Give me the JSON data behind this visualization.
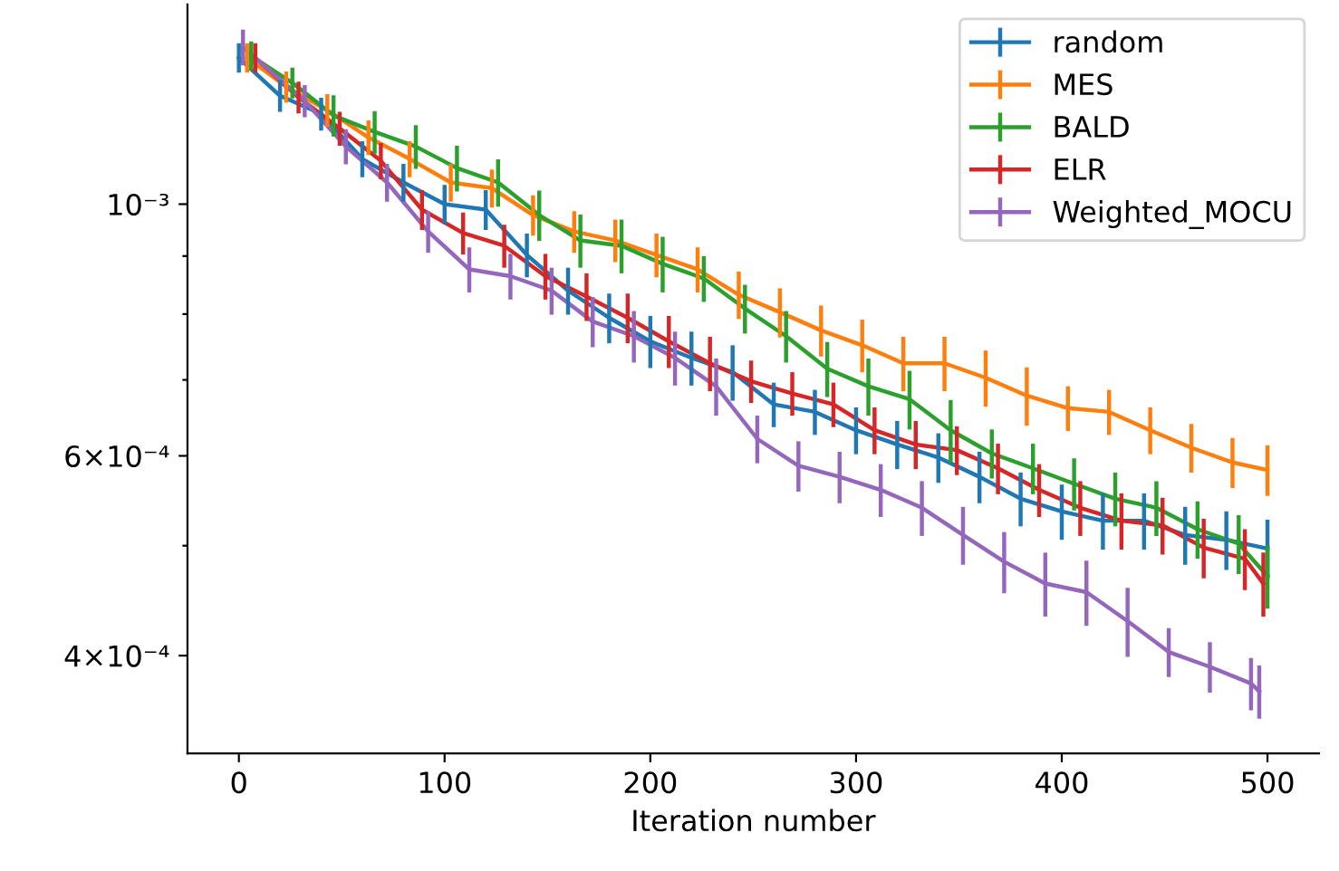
{
  "chart_data": {
    "type": "line",
    "xlabel": "Iteration number",
    "x": [
      0,
      20,
      40,
      60,
      80,
      100,
      120,
      140,
      160,
      180,
      200,
      220,
      240,
      260,
      280,
      300,
      320,
      340,
      360,
      380,
      400,
      420,
      440,
      460,
      480,
      500
    ],
    "series": [
      {
        "name": "random",
        "color": "#1f77b4",
        "values": [
          0.001346,
          0.001246,
          0.001201,
          0.001096,
          0.001045,
          0.001,
          0.000989,
          0.000902,
          0.000839,
          0.000794,
          0.000757,
          0.000732,
          0.000711,
          0.000666,
          0.000656,
          0.000632,
          0.000614,
          0.000598,
          0.000575,
          0.00055,
          0.000536,
          0.000526,
          0.000526,
          0.000511,
          0.000506,
          0.000497
        ],
        "errors": [
          4e-05,
          4e-05,
          4e-05,
          4e-05,
          4e-05,
          4e-05,
          4e-05,
          4e-05,
          4e-05,
          4e-05,
          4e-05,
          4e-05,
          4e-05,
          3e-05,
          3e-05,
          3e-05,
          3e-05,
          3e-05,
          3e-05,
          3e-05,
          3e-05,
          3e-05,
          3e-05,
          3e-05,
          3e-05,
          3e-05
        ]
      },
      {
        "name": "MES",
        "color": "#ff7f0e",
        "x": [
          4,
          23,
          43,
          63,
          83,
          103,
          123,
          143,
          163,
          183,
          203,
          223,
          243,
          263,
          283,
          303,
          323,
          343,
          363,
          383,
          403,
          423,
          443,
          463,
          483,
          500
        ],
        "values": [
          0.001346,
          0.001269,
          0.00121,
          0.001145,
          0.001096,
          0.001045,
          0.001033,
          0.000978,
          0.000946,
          0.000929,
          0.000902,
          0.000876,
          0.000832,
          0.000803,
          0.000774,
          0.000751,
          0.000724,
          0.000724,
          0.000703,
          0.000678,
          0.000661,
          0.000656,
          0.000632,
          0.00061,
          0.000592,
          0.000583
        ],
        "errors": [
          4e-05,
          4e-05,
          4e-05,
          4e-05,
          4e-05,
          4e-05,
          4e-05,
          4e-05,
          4e-05,
          4e-05,
          4e-05,
          4e-05,
          4e-05,
          4e-05,
          4e-05,
          4e-05,
          4e-05,
          4e-05,
          4e-05,
          4e-05,
          3e-05,
          3e-05,
          3e-05,
          3e-05,
          3e-05,
          3e-05
        ]
      },
      {
        "name": "BALD",
        "color": "#2ca02c",
        "x": [
          6,
          26,
          46,
          66,
          86,
          106,
          126,
          146,
          166,
          186,
          206,
          226,
          246,
          266,
          286,
          306,
          326,
          346,
          366,
          386,
          406,
          426,
          446,
          466,
          486,
          500
        ],
        "values": [
          0.001351,
          0.001279,
          0.001197,
          0.001158,
          0.001124,
          0.001076,
          0.001045,
          0.000978,
          0.000929,
          0.000919,
          0.000886,
          0.00086,
          0.000809,
          0.000765,
          0.000716,
          0.000691,
          0.000673,
          0.000632,
          0.000603,
          0.000585,
          0.000567,
          0.00055,
          0.00054,
          0.000517,
          0.000502,
          0.00047
        ],
        "errors": [
          4e-05,
          4e-05,
          5e-05,
          5e-05,
          5e-05,
          5e-05,
          5e-05,
          5e-05,
          5e-05,
          5e-05,
          5e-05,
          4e-05,
          4e-05,
          4e-05,
          4e-05,
          4e-05,
          4e-05,
          4e-05,
          3e-05,
          3e-05,
          3e-05,
          3e-05,
          3e-05,
          3e-05,
          3e-05,
          3e-05
        ]
      },
      {
        "name": "ELR",
        "color": "#d62728",
        "x": [
          8,
          29,
          49,
          69,
          89,
          109,
          129,
          149,
          169,
          189,
          209,
          229,
          249,
          269,
          289,
          309,
          329,
          349,
          369,
          389,
          409,
          429,
          449,
          469,
          489,
          498
        ],
        "values": [
          0.001346,
          0.001242,
          0.001166,
          0.001092,
          0.000989,
          0.000943,
          0.000919,
          0.000864,
          0.000829,
          0.000794,
          0.000757,
          0.000724,
          0.000698,
          0.000681,
          0.000666,
          0.000632,
          0.000614,
          0.000607,
          0.000585,
          0.00056,
          0.00054,
          0.000526,
          0.000521,
          0.000498,
          0.000487,
          0.000463
        ],
        "errors": [
          4e-05,
          4e-05,
          4e-05,
          4e-05,
          4e-05,
          4e-05,
          4e-05,
          4e-05,
          4e-05,
          4e-05,
          4e-05,
          4e-05,
          3e-05,
          3e-05,
          3e-05,
          3e-05,
          3e-05,
          3e-05,
          3e-05,
          3e-05,
          3e-05,
          3e-05,
          3e-05,
          3e-05,
          3e-05,
          3e-05
        ]
      },
      {
        "name": "Weighted_MOCU",
        "color": "#9467bd",
        "x": [
          2,
          32,
          52,
          72,
          92,
          112,
          132,
          152,
          172,
          192,
          212,
          232,
          252,
          272,
          292,
          312,
          332,
          352,
          372,
          392,
          412,
          432,
          452,
          472,
          492,
          496
        ],
        "values": [
          0.001375,
          0.001233,
          0.001124,
          0.001045,
          0.000946,
          0.000876,
          0.000864,
          0.000839,
          0.000788,
          0.000765,
          0.000732,
          0.000691,
          0.000621,
          0.000588,
          0.000575,
          0.00056,
          0.00054,
          0.000511,
          0.000484,
          0.000463,
          0.000455,
          0.000429,
          0.000403,
          0.000391,
          0.000378,
          0.000372
        ],
        "errors": [
          5e-05,
          4e-05,
          4e-05,
          4e-05,
          4e-05,
          4e-05,
          4e-05,
          4e-05,
          4e-05,
          4e-05,
          4e-05,
          4e-05,
          3e-05,
          3e-05,
          3e-05,
          3e-05,
          3e-05,
          3e-05,
          3e-05,
          3e-05,
          3e-05,
          3e-05,
          2e-05,
          2e-05,
          2e-05,
          2e-05
        ]
      }
    ],
    "log": "y",
    "xlim": [
      -25,
      525
    ],
    "xticks": [
      0,
      100,
      200,
      300,
      400,
      500
    ],
    "ylim": [
      0.000328,
      0.0015
    ],
    "yticks": [
      {
        "value": 0.0004,
        "label": "4×10⁻⁴"
      },
      {
        "value": 0.0005,
        "label": null
      },
      {
        "value": 0.0006,
        "label": "6×10⁻⁴"
      },
      {
        "value": 0.0007,
        "label": null
      },
      {
        "value": 0.0008,
        "label": null
      },
      {
        "value": 0.0009,
        "label": null
      },
      {
        "value": 0.001,
        "label": "10⁻³"
      }
    ],
    "grid": false,
    "legend": "top right",
    "marker": "none",
    "line_style": "solid"
  }
}
